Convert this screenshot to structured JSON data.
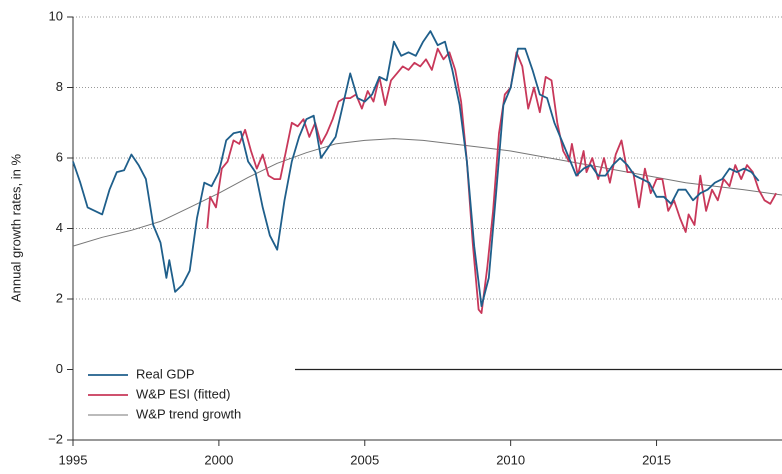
{
  "chart_data": {
    "type": "line",
    "y_label": "Annual growth rates, in %",
    "xlim": [
      1995,
      2019.3
    ],
    "xticks": [
      1995,
      2000,
      2005,
      2010,
      2015
    ],
    "ylim": [
      -2,
      10
    ],
    "yticks": [
      {
        "value": -2,
        "label": "−2"
      },
      0,
      2,
      4,
      6,
      8,
      10
    ],
    "grid": true,
    "legend": "lower left",
    "series": [
      {
        "name": "Real GDP",
        "color": "#1f5f8b",
        "x": [
          1995.0,
          1995.25,
          1995.5,
          1995.75,
          1996.0,
          1996.25,
          1996.5,
          1996.75,
          1997.0,
          1997.25,
          1997.5,
          1997.75,
          1998.0,
          1998.2,
          1998.3,
          1998.5,
          1998.75,
          1999.0,
          1999.25,
          1999.5,
          1999.75,
          2000.0,
          2000.25,
          2000.5,
          2000.75,
          2001.0,
          2001.25,
          2001.5,
          2001.75,
          2002.0,
          2002.25,
          2002.5,
          2002.75,
          2003.0,
          2003.25,
          2003.5,
          2003.75,
          2004.0,
          2004.25,
          2004.5,
          2004.75,
          2005.0,
          2005.25,
          2005.5,
          2005.75,
          2006.0,
          2006.25,
          2006.5,
          2006.75,
          2007.0,
          2007.25,
          2007.5,
          2007.75,
          2008.0,
          2008.25,
          2008.5,
          2008.75,
          2009.0,
          2009.25,
          2009.5,
          2009.75,
          2010.0,
          2010.25,
          2010.5,
          2010.75,
          2011.0,
          2011.25,
          2011.5,
          2011.75,
          2012.0,
          2012.25,
          2012.5,
          2012.75,
          2013.0,
          2013.25,
          2013.5,
          2013.75,
          2014.0,
          2014.25,
          2014.5,
          2014.75,
          2015.0,
          2015.25,
          2015.5,
          2015.75,
          2016.0,
          2016.25,
          2016.5,
          2016.75,
          2017.0,
          2017.25,
          2017.5,
          2017.75,
          2018.0,
          2018.25,
          2018.5
        ],
        "values": [
          5.9,
          5.3,
          4.6,
          4.5,
          4.4,
          5.1,
          5.6,
          5.65,
          6.1,
          5.8,
          5.4,
          4.1,
          3.6,
          2.6,
          3.1,
          2.2,
          2.4,
          2.8,
          4.3,
          5.3,
          5.2,
          5.6,
          6.5,
          6.7,
          6.75,
          5.9,
          5.6,
          4.6,
          3.8,
          3.4,
          4.8,
          5.9,
          6.6,
          7.1,
          7.2,
          6.0,
          6.3,
          6.6,
          7.5,
          8.4,
          7.7,
          7.6,
          7.8,
          8.3,
          8.2,
          9.3,
          8.9,
          9.0,
          8.9,
          9.3,
          9.6,
          9.2,
          9.3,
          8.5,
          7.5,
          5.9,
          3.5,
          1.8,
          2.6,
          5.0,
          7.5,
          8.0,
          9.1,
          9.1,
          8.5,
          7.8,
          7.7,
          7.0,
          6.5,
          6.0,
          5.5,
          5.7,
          5.8,
          5.5,
          5.5,
          5.8,
          6.0,
          5.8,
          5.5,
          5.4,
          5.3,
          4.9,
          4.9,
          4.7,
          5.1,
          5.1,
          4.8,
          5.0,
          5.1,
          5.3,
          5.4,
          5.7,
          5.6,
          5.7,
          5.6,
          5.35
        ]
      },
      {
        "name": "W&P ESI (fitted)",
        "color": "#c8385a",
        "x": [
          1999.6,
          1999.7,
          1999.9,
          2000.1,
          2000.3,
          2000.5,
          2000.7,
          2000.9,
          2001.1,
          2001.3,
          2001.5,
          2001.7,
          2001.9,
          2002.1,
          2002.3,
          2002.5,
          2002.7,
          2002.9,
          2003.1,
          2003.3,
          2003.5,
          2003.7,
          2003.9,
          2004.1,
          2004.3,
          2004.5,
          2004.7,
          2004.9,
          2005.1,
          2005.3,
          2005.5,
          2005.7,
          2005.9,
          2006.1,
          2006.3,
          2006.5,
          2006.7,
          2006.9,
          2007.1,
          2007.3,
          2007.5,
          2007.7,
          2007.9,
          2008.1,
          2008.3,
          2008.5,
          2008.7,
          2008.9,
          2009.0,
          2009.2,
          2009.4,
          2009.6,
          2009.8,
          2010.0,
          2010.2,
          2010.4,
          2010.6,
          2010.8,
          2011.0,
          2011.2,
          2011.4,
          2011.6,
          2011.8,
          2012.0,
          2012.1,
          2012.3,
          2012.5,
          2012.6,
          2012.8,
          2013.0,
          2013.2,
          2013.4,
          2013.6,
          2013.8,
          2014.0,
          2014.2,
          2014.4,
          2014.6,
          2014.8,
          2015.0,
          2015.2,
          2015.4,
          2015.6,
          2015.8,
          2016.0,
          2016.1,
          2016.3,
          2016.5,
          2016.7,
          2016.9,
          2017.1,
          2017.3,
          2017.5,
          2017.7,
          2017.9,
          2018.1,
          2018.3,
          2018.5,
          2018.7,
          2018.9,
          2019.1
        ],
        "values": [
          4.0,
          4.9,
          4.6,
          5.7,
          5.9,
          6.5,
          6.4,
          6.8,
          6.2,
          5.7,
          6.1,
          5.5,
          5.4,
          5.4,
          6.2,
          7.0,
          6.9,
          7.1,
          6.6,
          7.0,
          6.4,
          6.7,
          7.1,
          7.6,
          7.7,
          7.7,
          7.8,
          7.4,
          7.9,
          7.6,
          8.3,
          7.5,
          8.2,
          8.4,
          8.6,
          8.5,
          8.7,
          8.6,
          8.8,
          8.5,
          9.1,
          8.8,
          9.0,
          8.5,
          7.6,
          5.9,
          3.6,
          1.7,
          1.6,
          2.9,
          4.5,
          6.7,
          7.8,
          8.0,
          9.0,
          8.6,
          7.4,
          8.0,
          7.3,
          8.3,
          8.2,
          7.0,
          6.2,
          5.9,
          6.4,
          5.5,
          6.2,
          5.6,
          6.0,
          5.4,
          6.0,
          5.3,
          6.1,
          6.5,
          5.6,
          5.6,
          4.6,
          5.7,
          5.0,
          5.4,
          5.4,
          4.5,
          4.8,
          4.3,
          3.9,
          4.4,
          4.1,
          5.5,
          4.5,
          5.1,
          4.8,
          5.4,
          5.2,
          5.8,
          5.4,
          5.8,
          5.6,
          5.1,
          4.8,
          4.7,
          5.0
        ]
      },
      {
        "name": "W&P trend growth",
        "color": "#777777",
        "x": [
          1995,
          1996,
          1997,
          1998,
          1999,
          2000,
          2001,
          2002,
          2003,
          2004,
          2005,
          2006,
          2007,
          2008,
          2009,
          2010,
          2011,
          2012,
          2013,
          2014,
          2015,
          2016,
          2017,
          2018,
          2019.3
        ],
        "values": [
          3.5,
          3.75,
          3.95,
          4.2,
          4.6,
          5.0,
          5.45,
          5.85,
          6.15,
          6.4,
          6.5,
          6.55,
          6.5,
          6.4,
          6.3,
          6.2,
          6.05,
          5.9,
          5.75,
          5.6,
          5.45,
          5.3,
          5.2,
          5.1,
          4.95
        ]
      }
    ]
  }
}
